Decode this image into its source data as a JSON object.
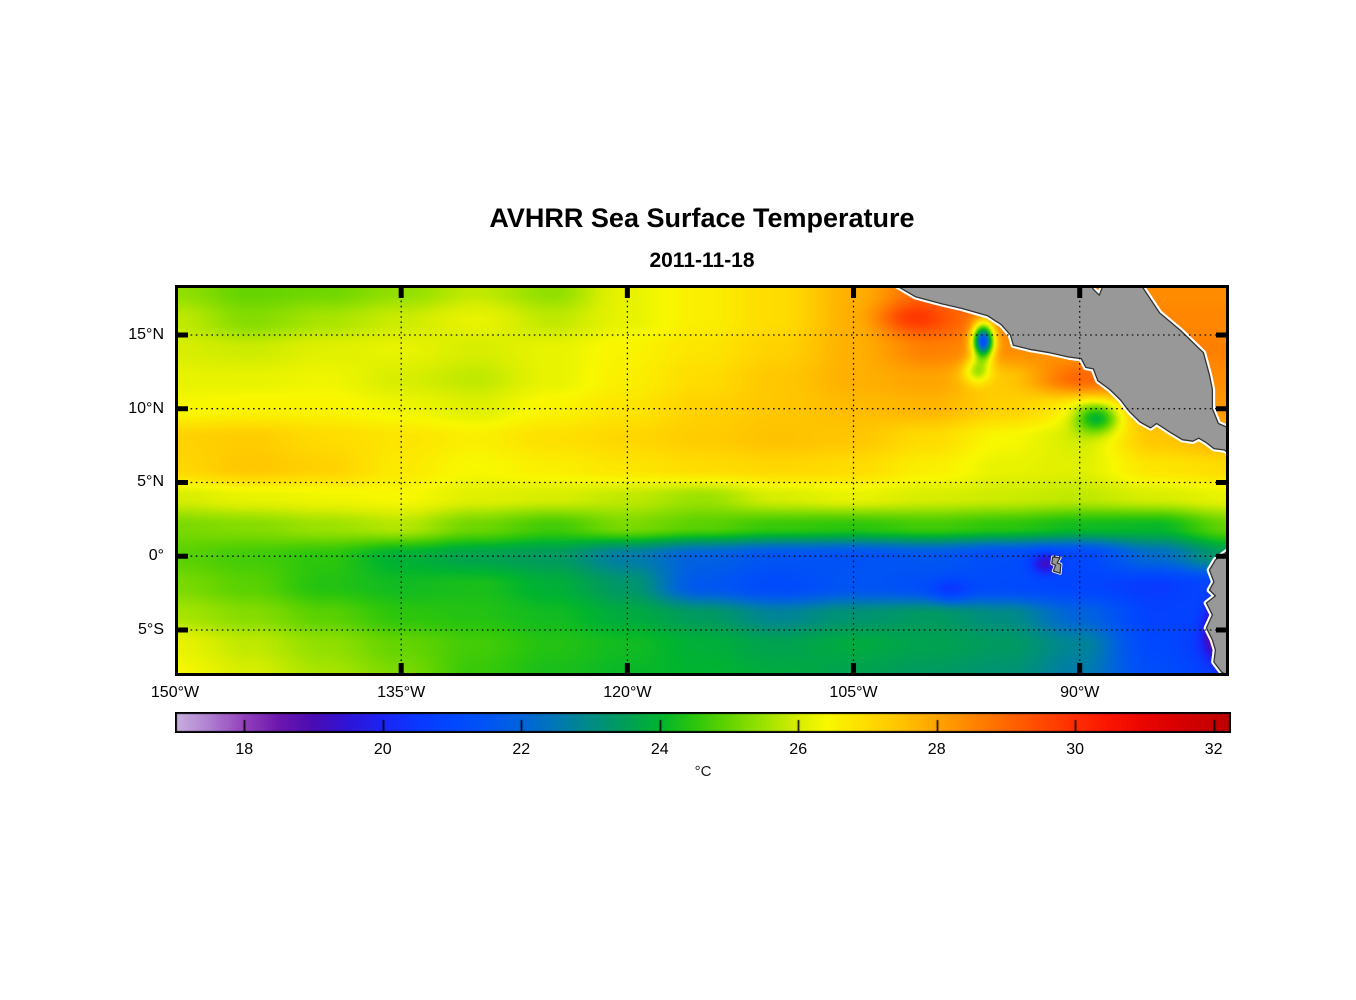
{
  "header": {
    "title": "AVHRR Sea Surface Temperature",
    "date": "2011-11-18"
  },
  "chart_data": {
    "type": "heatmap",
    "title": "AVHRR Sea Surface Temperature",
    "subtitle_date": "2011-11-18",
    "x_axis": {
      "range_lon": [
        -150,
        -80.1
      ],
      "ticks": [
        {
          "value": -150,
          "label": "150°W"
        },
        {
          "value": -135,
          "label": "135°W"
        },
        {
          "value": -120,
          "label": "120°W"
        },
        {
          "value": -105,
          "label": "105°W"
        },
        {
          "value": -90,
          "label": "90°W"
        }
      ],
      "gridlines": [
        -135,
        -120,
        -105,
        -90
      ]
    },
    "y_axis": {
      "range_lat": [
        -8.12,
        18.39
      ],
      "ticks": [
        {
          "value": 15,
          "label": "15°N"
        },
        {
          "value": 10,
          "label": "10°N"
        },
        {
          "value": 5,
          "label": "5°N"
        },
        {
          "value": 0,
          "label": "0°"
        },
        {
          "value": -5,
          "label": "5°S"
        }
      ],
      "gridlines": [
        15,
        10,
        5,
        0,
        -5
      ]
    },
    "colorbar": {
      "unit": "°C",
      "range": [
        17,
        32.25
      ],
      "ticks": [
        18,
        20,
        22,
        24,
        26,
        28,
        30,
        32
      ],
      "colormap": [
        [
          17.0,
          "#c9b0de"
        ],
        [
          17.5,
          "#ae7ed0"
        ],
        [
          18.0,
          "#9340bc"
        ],
        [
          18.5,
          "#6c16ae"
        ],
        [
          19.0,
          "#4a0cb4"
        ],
        [
          19.5,
          "#2e14d8"
        ],
        [
          20.0,
          "#1c24f4"
        ],
        [
          20.5,
          "#0a38ff"
        ],
        [
          21.0,
          "#0048ff"
        ],
        [
          21.5,
          "#0054f4"
        ],
        [
          22.0,
          "#0064dc"
        ],
        [
          22.5,
          "#0078b4"
        ],
        [
          23.0,
          "#008c84"
        ],
        [
          23.5,
          "#009e58"
        ],
        [
          24.0,
          "#00b430"
        ],
        [
          24.5,
          "#2cc60c"
        ],
        [
          25.0,
          "#64d400"
        ],
        [
          25.5,
          "#9ce200"
        ],
        [
          26.0,
          "#d8ee00"
        ],
        [
          26.4,
          "#f8f800"
        ],
        [
          27.0,
          "#ffdc00"
        ],
        [
          27.5,
          "#ffc200"
        ],
        [
          28.0,
          "#ffa400"
        ],
        [
          28.5,
          "#ff8600"
        ],
        [
          29.0,
          "#ff6800"
        ],
        [
          29.5,
          "#ff4a00"
        ],
        [
          30.0,
          "#ff2e00"
        ],
        [
          30.5,
          "#fa1400"
        ],
        [
          31.0,
          "#ea0600"
        ],
        [
          31.5,
          "#d80000"
        ],
        [
          32.25,
          "#bc0000"
        ]
      ]
    },
    "grid": {
      "lons": [
        -150,
        -145,
        -140,
        -135,
        -130,
        -125,
        -120,
        -115,
        -110,
        -105,
        -100,
        -95,
        -90,
        -85,
        -80
      ],
      "lats": [
        18,
        16,
        14,
        12,
        10,
        8,
        6,
        4,
        2,
        0,
        -2,
        -4,
        -6,
        -8
      ],
      "sst_c": [
        [
          25.4,
          25.0,
          25.1,
          25.4,
          25.8,
          25.4,
          26.2,
          26.6,
          27.0,
          27.8,
          29.0,
          29.0,
          28.6,
          28.4,
          28.4
        ],
        [
          25.8,
          25.3,
          25.6,
          25.9,
          26.2,
          25.8,
          26.2,
          26.6,
          27.0,
          27.8,
          29.2,
          28.6,
          28.5,
          28.5,
          28.5
        ],
        [
          26.0,
          25.9,
          26.1,
          26.2,
          26.0,
          26.2,
          26.5,
          26.8,
          27.2,
          27.8,
          28.6,
          28.4,
          28.2,
          28.6,
          28.6
        ],
        [
          26.2,
          26.2,
          26.3,
          26.0,
          25.8,
          26.2,
          26.6,
          27.0,
          27.4,
          27.8,
          28.0,
          27.4,
          29.0,
          28.4,
          28.4
        ],
        [
          26.4,
          26.5,
          26.5,
          26.3,
          26.1,
          26.5,
          26.8,
          27.2,
          27.4,
          27.6,
          27.7,
          27.2,
          26.6,
          27.8,
          28.2
        ],
        [
          27.2,
          27.3,
          27.0,
          26.8,
          26.6,
          26.9,
          27.1,
          27.3,
          27.5,
          27.4,
          27.0,
          26.4,
          26.0,
          27.4,
          27.8
        ],
        [
          27.1,
          27.4,
          27.2,
          26.7,
          26.4,
          26.6,
          26.8,
          27.0,
          27.1,
          27.0,
          26.6,
          26.2,
          26.1,
          26.8,
          27.0
        ],
        [
          26.0,
          26.2,
          26.3,
          26.4,
          26.1,
          26.0,
          25.8,
          25.5,
          26.0,
          26.2,
          26.0,
          25.9,
          25.8,
          26.0,
          26.2
        ],
        [
          25.2,
          25.3,
          25.5,
          25.7,
          25.1,
          24.7,
          25.2,
          24.9,
          24.6,
          24.5,
          24.7,
          24.5,
          24.2,
          24.1,
          25.0
        ],
        [
          24.9,
          24.7,
          24.5,
          23.9,
          23.6,
          23.4,
          22.6,
          21.9,
          21.5,
          21.4,
          21.6,
          21.2,
          21.0,
          22.2,
          23.4
        ],
        [
          25.2,
          24.9,
          24.4,
          24.2,
          24.3,
          23.9,
          23.3,
          21.6,
          21.1,
          21.5,
          21.3,
          21.1,
          20.9,
          20.6,
          21.0
        ],
        [
          25.6,
          25.3,
          24.9,
          24.5,
          24.4,
          24.2,
          23.8,
          23.4,
          22.8,
          23.2,
          23.4,
          23.0,
          22.0,
          20.8,
          21.0
        ],
        [
          26.2,
          25.8,
          25.4,
          25.0,
          24.7,
          24.4,
          24.2,
          23.9,
          23.6,
          23.8,
          23.6,
          23.4,
          22.8,
          21.0,
          20.4
        ],
        [
          26.4,
          26.0,
          25.6,
          25.2,
          24.6,
          24.3,
          24.1,
          24.0,
          23.8,
          23.6,
          23.4,
          23.2,
          22.6,
          21.2,
          20.6
        ]
      ]
    },
    "anomaly_blobs": [
      [
        -96.4,
        14.6,
        0.7,
        1.15,
        -7.2
      ],
      [
        -96.8,
        12.6,
        0.9,
        0.9,
        -2.0
      ],
      [
        -88.8,
        9.4,
        1.5,
        1.0,
        -2.6
      ],
      [
        -92.3,
        -0.5,
        0.9,
        0.7,
        -1.8
      ],
      [
        -80.7,
        -5.0,
        1.0,
        1.8,
        -3.4
      ],
      [
        -98.6,
        -2.4,
        1.3,
        0.8,
        -0.9
      ],
      [
        -101.5,
        16.2,
        2.2,
        1.0,
        0.8
      ]
    ],
    "land": {
      "fill": "#989898",
      "outline": "#333333",
      "coast_halo": "#ffffff",
      "polygons": {
        "central_america": [
          [
            -102.4,
            18.5
          ],
          [
            -100.9,
            17.6
          ],
          [
            -99.1,
            17.1
          ],
          [
            -97.8,
            16.8
          ],
          [
            -96.1,
            16.3
          ],
          [
            -95.2,
            15.7
          ],
          [
            -94.6,
            15.0
          ],
          [
            -94.4,
            14.3
          ],
          [
            -93.2,
            14.0
          ],
          [
            -92.0,
            13.8
          ],
          [
            -90.7,
            13.5
          ],
          [
            -89.9,
            13.4
          ],
          [
            -89.6,
            12.8
          ],
          [
            -89.1,
            12.7
          ],
          [
            -88.8,
            11.9
          ],
          [
            -88.0,
            11.3
          ],
          [
            -87.3,
            10.6
          ],
          [
            -86.7,
            9.8
          ],
          [
            -86.0,
            9.1
          ],
          [
            -85.3,
            8.7
          ],
          [
            -84.9,
            9.0
          ],
          [
            -84.0,
            8.4
          ],
          [
            -83.2,
            7.9
          ],
          [
            -82.5,
            7.8
          ],
          [
            -82.1,
            8.0
          ],
          [
            -81.6,
            7.7
          ],
          [
            -81.1,
            7.3
          ],
          [
            -80.4,
            7.2
          ],
          [
            -79.9,
            6.8
          ],
          [
            -79.9,
            8.6
          ],
          [
            -80.8,
            9.0
          ],
          [
            -81.2,
            10.0
          ],
          [
            -81.2,
            11.3
          ],
          [
            -81.4,
            12.3
          ],
          [
            -81.8,
            13.8
          ],
          [
            -83.3,
            15.3
          ],
          [
            -84.7,
            16.5
          ],
          [
            -86.0,
            18.5
          ],
          [
            -88.4,
            18.5
          ],
          [
            -88.7,
            17.7
          ],
          [
            -89.1,
            18.1
          ],
          [
            -89.3,
            18.5
          ]
        ],
        "south_america": [
          [
            -79.9,
            0.56
          ],
          [
            -81.0,
            -0.25
          ],
          [
            -81.4,
            -0.93
          ],
          [
            -81.1,
            -1.75
          ],
          [
            -81.4,
            -2.29
          ],
          [
            -81.0,
            -2.69
          ],
          [
            -81.6,
            -3.17
          ],
          [
            -81.2,
            -3.98
          ],
          [
            -81.6,
            -4.86
          ],
          [
            -81.2,
            -5.68
          ],
          [
            -81.0,
            -6.35
          ],
          [
            -81.1,
            -7.17
          ],
          [
            -80.6,
            -7.85
          ],
          [
            -80.0,
            -8.2
          ],
          [
            -79.5,
            -8.3
          ],
          [
            -79.5,
            0.6
          ]
        ],
        "galapagos": [
          [
            -91.8,
            -0.05
          ],
          [
            -91.3,
            -0.1
          ],
          [
            -91.5,
            -0.45
          ],
          [
            -91.25,
            -0.55
          ],
          [
            -91.3,
            -1.15
          ],
          [
            -91.75,
            -1.0
          ],
          [
            -91.6,
            -0.6
          ],
          [
            -91.85,
            -0.5
          ]
        ]
      }
    }
  }
}
